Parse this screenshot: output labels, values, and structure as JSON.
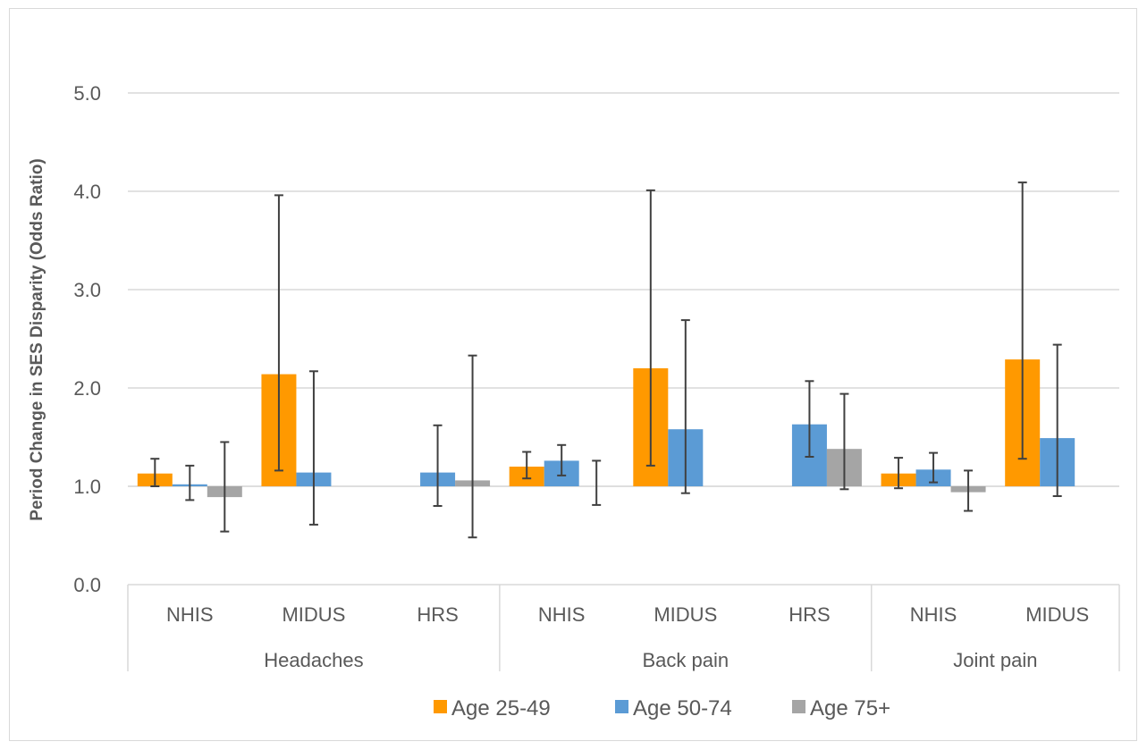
{
  "chart_data": {
    "type": "bar",
    "title": "",
    "xlabel": "",
    "ylabel": "Period Change in SES Disparity (Odds Ratio)",
    "ylim": [
      0,
      5
    ],
    "y_ticks": [
      "0.0",
      "1.0",
      "2.0",
      "3.0",
      "4.0",
      "5.0"
    ],
    "baseline": 1.0,
    "grid": true,
    "legend_position": "bottom",
    "groups": [
      {
        "name": "Headaches",
        "categories": [
          "NHIS",
          "MIDUS",
          "HRS"
        ]
      },
      {
        "name": "Back pain",
        "categories": [
          "NHIS",
          "MIDUS",
          "HRS"
        ]
      },
      {
        "name": "Joint pain",
        "categories": [
          "NHIS",
          "MIDUS"
        ]
      }
    ],
    "categories": [
      "Headaches NHIS",
      "Headaches MIDUS",
      "Headaches HRS",
      "Back pain NHIS",
      "Back pain MIDUS",
      "Back pain HRS",
      "Joint pain NHIS",
      "Joint pain MIDUS"
    ],
    "series": [
      {
        "name": "Age 25-49",
        "color": "#ff9900",
        "values": [
          1.13,
          2.14,
          null,
          1.2,
          2.2,
          null,
          1.13,
          2.29
        ],
        "ci_low": [
          1.0,
          1.16,
          null,
          1.08,
          1.21,
          null,
          0.98,
          1.28
        ],
        "ci_high": [
          1.28,
          3.96,
          null,
          1.35,
          4.01,
          null,
          1.29,
          4.09
        ]
      },
      {
        "name": "Age 50-74",
        "color": "#5b9bd5",
        "values": [
          1.02,
          1.14,
          1.14,
          1.26,
          1.58,
          1.63,
          1.17,
          1.49
        ],
        "ci_low": [
          0.86,
          0.61,
          0.8,
          1.11,
          0.93,
          1.3,
          1.04,
          0.9
        ],
        "ci_high": [
          1.21,
          2.17,
          1.62,
          1.42,
          2.69,
          2.07,
          1.34,
          2.44
        ]
      },
      {
        "name": "Age 75+",
        "color": "#a5a5a5",
        "values": [
          0.89,
          null,
          1.06,
          null,
          null,
          1.38,
          0.94,
          null
        ],
        "ci_low": [
          0.54,
          null,
          0.48,
          0.81,
          null,
          0.97,
          0.75,
          null
        ],
        "ci_high": [
          1.45,
          null,
          2.33,
          1.26,
          null,
          1.94,
          1.16,
          null
        ]
      }
    ]
  }
}
